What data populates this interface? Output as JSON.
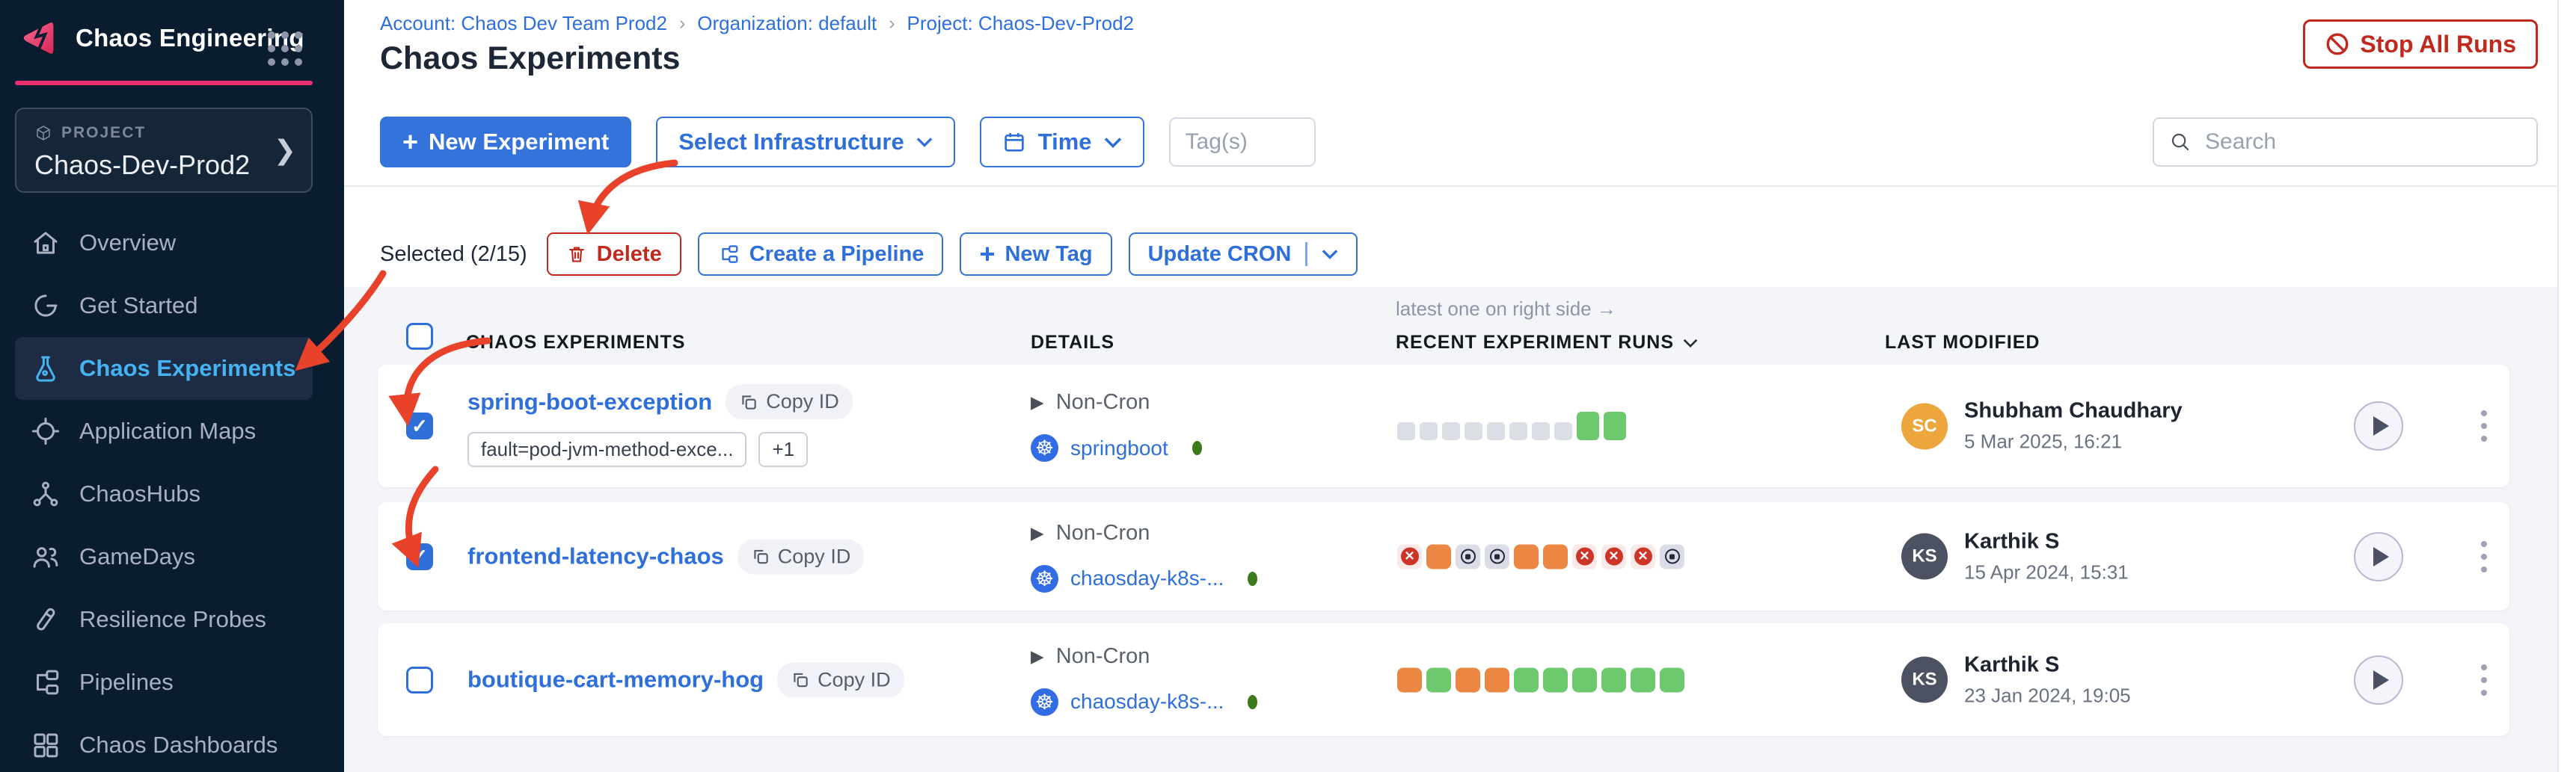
{
  "sidebar": {
    "brand": "Chaos Engineering",
    "project_label": "PROJECT",
    "project_name": "Chaos-Dev-Prod2",
    "nav": [
      {
        "label": "Overview"
      },
      {
        "label": "Get Started"
      },
      {
        "label": "Chaos Experiments"
      },
      {
        "label": "Application Maps"
      },
      {
        "label": "ChaosHubs"
      },
      {
        "label": "GameDays"
      },
      {
        "label": "Resilience Probes"
      },
      {
        "label": "Pipelines"
      },
      {
        "label": "Chaos Dashboards"
      }
    ]
  },
  "breadcrumb": {
    "account": "Account: Chaos Dev Team Prod2",
    "org": "Organization: default",
    "project": "Project: Chaos-Dev-Prod2",
    "separator": "›"
  },
  "page": {
    "title": "Chaos Experiments",
    "stop_all_runs": "Stop All Runs"
  },
  "toolbar": {
    "new_experiment": "New Experiment",
    "select_infrastructure": "Select Infrastructure",
    "time": "Time",
    "tags_placeholder": "Tag(s)",
    "search_placeholder": "Search"
  },
  "bulkbar": {
    "selected": "Selected (2/15)",
    "delete": "Delete",
    "create_pipeline": "Create a Pipeline",
    "new_tag": "New Tag",
    "update_cron": "Update CRON"
  },
  "table": {
    "runs_note": "latest one on right side →",
    "headers": {
      "experiments": "CHAOS EXPERIMENTS",
      "details": "DETAILS",
      "runs": "RECENT EXPERIMENT RUNS",
      "last_modified": "LAST MODIFIED"
    }
  },
  "rows": [
    {
      "name": "spring-boot-exception",
      "copy_id": "Copy ID",
      "checked": true,
      "tags": [
        "fault=pod-jvm-method-exce...",
        "+1"
      ],
      "cron": "Non-Cron",
      "infra": "springboot",
      "k8s_glyph": "☸",
      "runs": [
        "empty",
        "empty",
        "empty",
        "empty",
        "empty",
        "empty",
        "empty",
        "empty",
        "success-tall",
        "success-tall"
      ],
      "modified_by": "Shubham Chaudhary",
      "initials": "SC",
      "avatar_color": "#EDA63C",
      "modified_at": "5 Mar 2025, 16:21"
    },
    {
      "name": "frontend-latency-chaos",
      "copy_id": "Copy ID",
      "checked": true,
      "tags": [],
      "cron": "Non-Cron",
      "infra": "chaosday-k8s-...",
      "k8s_glyph": "☸",
      "runs": [
        "failed",
        "running",
        "stopped",
        "stopped",
        "running",
        "running",
        "failed",
        "failed",
        "failed",
        "stopped"
      ],
      "modified_by": "Karthik S",
      "initials": "KS",
      "avatar_color": "#4D5263",
      "modified_at": "15 Apr 2024, 15:31"
    },
    {
      "name": "boutique-cart-memory-hog",
      "copy_id": "Copy ID",
      "checked": false,
      "tags": [],
      "cron": "Non-Cron",
      "infra": "chaosday-k8s-...",
      "k8s_glyph": "☸",
      "runs": [
        "running",
        "success",
        "running",
        "running",
        "success",
        "success",
        "success",
        "success",
        "success",
        "success"
      ],
      "modified_by": "Karthik S",
      "initials": "KS",
      "avatar_color": "#4D5263",
      "modified_at": "23 Jan 2024, 19:05"
    }
  ],
  "colors": {
    "accent_pink": "#E9316F",
    "primary_blue": "#3472DC",
    "danger_red": "#BE2A1E",
    "success_green": "#6DC96E",
    "running_orange": "#EB8742",
    "annotation_red": "#E8432A"
  }
}
